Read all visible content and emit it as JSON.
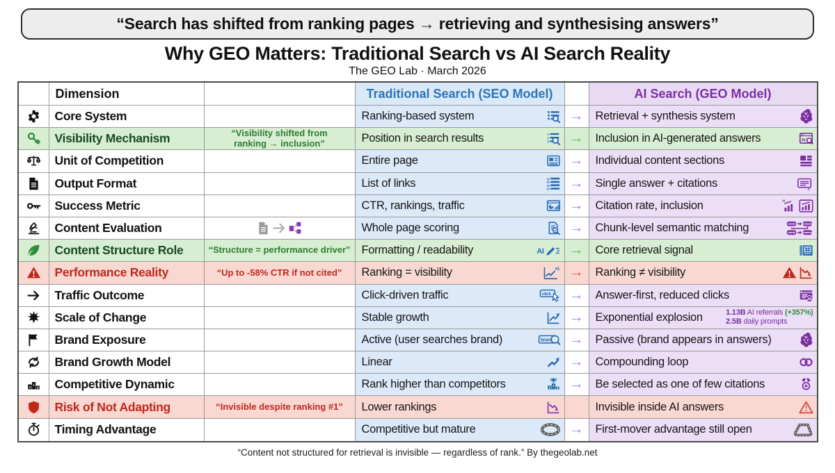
{
  "page": {
    "quote": "“Search has shifted from ranking pages → retrieving and synthesising answers”",
    "title": "Why GEO Matters: Traditional Search vs AI Search Reality",
    "subtitle": "The GEO Lab · March 2026",
    "footer": "“Content not structured for retrieval is invisible — regardless of rank.” By thegeolab.net"
  },
  "colors": {
    "blue": "#2a6db2",
    "purple": "#7b2fa3",
    "red": "#c0281e",
    "red_soft": "#d9453a",
    "green": "#2f8d3a",
    "dark_green": "#194a22",
    "stat_green": "#2f8d3a",
    "arrow_purple": "#a87fd4",
    "arrow_green": "#56b35c",
    "arrow_red": "#e0554b",
    "bg_blue": "#dbe9f8",
    "bg_lavender": "#ecdef6",
    "bg_green": "#d7eed2",
    "bg_red": "#f8d8d1",
    "header_blue_text": "#2e74b5",
    "header_purple_text": "#7b2fa3"
  },
  "table": {
    "headers": {
      "dimension": "Dimension",
      "traditional": "Traditional Search (SEO Model)",
      "ai": "AI Search (GEO Model)"
    },
    "rows": [
      {
        "type": "normal",
        "icon": "gear",
        "dimension": "Core System",
        "trad": {
          "text": "Ranking-based system",
          "icons": [
            {
              "n": "list-search"
            }
          ]
        },
        "arrow": "purple",
        "ai": {
          "text": "Retrieval + synthesis system",
          "icons": [
            {
              "n": "brain"
            }
          ]
        }
      },
      {
        "type": "green",
        "icon": "key-tilt",
        "icon_color": "#2f8d3a",
        "dimension": "Visibility Mechanism",
        "note": [
          "“Visibility shifted from",
          "ranking → inclusion”"
        ],
        "trad": {
          "text": "Position in search results",
          "icons": [
            {
              "n": "numlist-search"
            }
          ]
        },
        "arrow": "green",
        "ai": {
          "text": "Inclusion in AI-generated answers",
          "icons": [
            {
              "n": "ai-browser"
            }
          ]
        }
      },
      {
        "type": "normal",
        "icon": "scales",
        "dimension": "Unit of Competition",
        "trad": {
          "text": "Entire page",
          "icons": [
            {
              "n": "page"
            }
          ]
        },
        "arrow": "purple",
        "ai": {
          "text": "Individual content sections",
          "icons": [
            {
              "n": "blocks"
            }
          ]
        }
      },
      {
        "type": "normal",
        "icon": "doc",
        "dimension": "Output Format",
        "trad": {
          "text": "List of links",
          "icons": [
            {
              "n": "ranklist"
            }
          ]
        },
        "arrow": "purple",
        "ai": {
          "text": "Single answer + citations",
          "icons": [
            {
              "n": "answer-doc"
            }
          ]
        }
      },
      {
        "type": "normal",
        "icon": "key-flat",
        "dimension": "Success Metric",
        "trad": {
          "text": "CTR, rankings, traffic",
          "icons": [
            {
              "n": "dashboard"
            }
          ]
        },
        "arrow": "purple",
        "ai": {
          "text": "Citation rate, inclusion",
          "icons": [
            {
              "n": "cite-chart1"
            },
            {
              "n": "cite-chart2"
            }
          ]
        }
      },
      {
        "type": "normal",
        "icon": "microscope",
        "dimension": "Content Evaluation",
        "note_icons": [
          {
            "n": "doc",
            "c": "#9a9a9a"
          },
          {
            "n": "arrow-right",
            "c": "#b0b0b0"
          },
          {
            "n": "chunks",
            "c": "#8a3ab5"
          }
        ],
        "trad": {
          "text": "Whole page scoring",
          "icons": [
            {
              "n": "doc-search"
            }
          ]
        },
        "arrow": "purple",
        "ai": {
          "text": "Chunk-level semantic matching",
          "icons": [
            {
              "n": "semantic"
            }
          ]
        }
      },
      {
        "type": "green",
        "icon": "leaf",
        "icon_color": "#2f8d3a",
        "dimension": "Content Structure Role",
        "note": [
          "“Structure = performance driver”"
        ],
        "trad": {
          "text": "Formatting / readability",
          "icons": [
            {
              "n": "ai-edit"
            }
          ]
        },
        "arrow": "green",
        "ai": {
          "text": "Core retrieval signal",
          "icons": [
            {
              "n": "blueprint",
              "c": "#2f6fb5"
            }
          ]
        }
      },
      {
        "type": "red",
        "icon": "warn-filled",
        "icon_color": "#c0281e",
        "dimension": "Performance Reality",
        "note": [
          "“Up to -58% CTR if not cited”"
        ],
        "trad": {
          "text": "Ranking = visibility",
          "icons": [
            {
              "n": "chart-up-1"
            }
          ]
        },
        "arrow": "red",
        "ai": {
          "text": "Ranking ≠ visibility",
          "icons": [
            {
              "n": "warn-filled",
              "c": "#c0281e"
            },
            {
              "n": "chart-down",
              "c": "#c0281e"
            }
          ]
        }
      },
      {
        "type": "normal",
        "icon": "arrow-right",
        "dimension": "Traffic Outcome",
        "trad": {
          "text": "Click-driven traffic",
          "icons": [
            {
              "n": "click"
            }
          ]
        },
        "arrow": "purple",
        "ai": {
          "text": "Answer-first, reduced clicks",
          "icons": [
            {
              "n": "doc-person"
            }
          ]
        }
      },
      {
        "type": "normal",
        "icon": "burst",
        "dimension": "Scale of Change",
        "trad": {
          "text": "Stable growth",
          "icons": [
            {
              "n": "growth"
            }
          ]
        },
        "arrow": "purple",
        "ai": {
          "text": "Exponential explosion",
          "stat_lines": [
            [
              {
                "t": "1.13B",
                "b": true,
                "c": "purple"
              },
              {
                "t": " AI referrals ",
                "c": "purple"
              },
              {
                "t": "(+357%)",
                "b": true,
                "c": "stat_green"
              }
            ],
            [
              {
                "t": "2.5B",
                "b": true,
                "c": "purple"
              },
              {
                "t": " daily prompts",
                "c": "purple"
              }
            ]
          ]
        }
      },
      {
        "type": "normal",
        "icon": "flag",
        "dimension": "Brand Exposure",
        "trad": {
          "text": "Active (user searches brand)",
          "icons": [
            {
              "n": "brand-search"
            }
          ]
        },
        "arrow": "purple",
        "ai": {
          "text": "Passive (brand appears in answers)",
          "icons": [
            {
              "n": "brain"
            }
          ]
        }
      },
      {
        "type": "normal",
        "icon": "loop",
        "dimension": "Brand Growth Model",
        "trad": {
          "text": "Linear",
          "icons": [
            {
              "n": "rise-arrow"
            }
          ]
        },
        "arrow": "purple",
        "ai": {
          "text": "Compounding loop",
          "icons": [
            {
              "n": "loop2"
            }
          ]
        }
      },
      {
        "type": "normal",
        "icon": "podium",
        "dimension": "Competitive Dynamic",
        "trad": {
          "text": "Rank higher than competitors",
          "icons": [
            {
              "n": "trophy-podium"
            }
          ]
        },
        "arrow": "purple",
        "ai": {
          "text": "Be selected as one of few citations",
          "icons": [
            {
              "n": "medal"
            }
          ]
        }
      },
      {
        "type": "red",
        "icon": "shield",
        "icon_color": "#c0281e",
        "dimension": "Risk of Not Adapting",
        "note": [
          "“Invisible despite ranking #1”"
        ],
        "trad": {
          "text": "Lower rankings",
          "icons": [
            {
              "n": "chart-down",
              "c": "#8a3ab5"
            }
          ]
        },
        "arrow": "none",
        "ai": {
          "text": "Invisible inside AI answers",
          "icons": [
            {
              "n": "warn-outline",
              "c": "#d9453a"
            }
          ]
        }
      },
      {
        "type": "normal",
        "icon": "stopwatch",
        "dimension": "Timing Advantage",
        "trad": {
          "text": "Competitive but mature",
          "icons": [
            {
              "n": "racetrack",
              "c": "#5a5a5a"
            }
          ]
        },
        "arrow": "purple",
        "ai": {
          "text": "First-mover advantage still open",
          "icons": [
            {
              "n": "track-open",
              "c": "#5a5a5a"
            }
          ]
        }
      }
    ]
  }
}
